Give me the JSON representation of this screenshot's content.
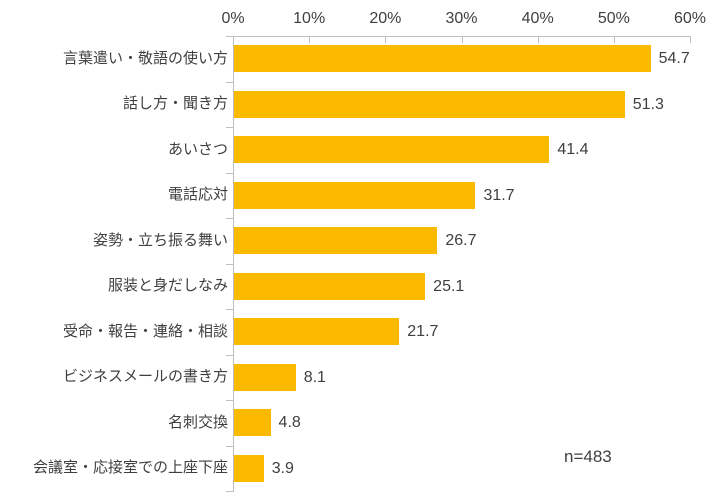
{
  "chart_data": {
    "type": "bar",
    "orientation": "horizontal",
    "title": "",
    "xlabel": "",
    "ylabel": "",
    "xlim": [
      0,
      60
    ],
    "x_tick_step": 10,
    "x_tick_labels": [
      "0%",
      "10%",
      "20%",
      "30%",
      "40%",
      "50%",
      "60%"
    ],
    "grid": false,
    "legend": false,
    "categories": [
      "言葉遣い・敬語の使い方",
      "話し方・聞き方",
      "あいさつ",
      "電話応対",
      "姿勢・立ち振る舞い",
      "服装と身だしなみ",
      "受命・報告・連絡・相談",
      "ビジネスメールの書き方",
      "名刺交換",
      "会議室・応接室での上座下座"
    ],
    "values": [
      54.7,
      51.3,
      41.4,
      31.7,
      26.7,
      25.1,
      21.7,
      8.1,
      4.8,
      3.9
    ],
    "value_label_format": "one-decimal",
    "annotation": "n=483",
    "bar_color": "#FBBA00",
    "axis_color": "#BFBFBF",
    "text_color": "#3F3F3F"
  }
}
